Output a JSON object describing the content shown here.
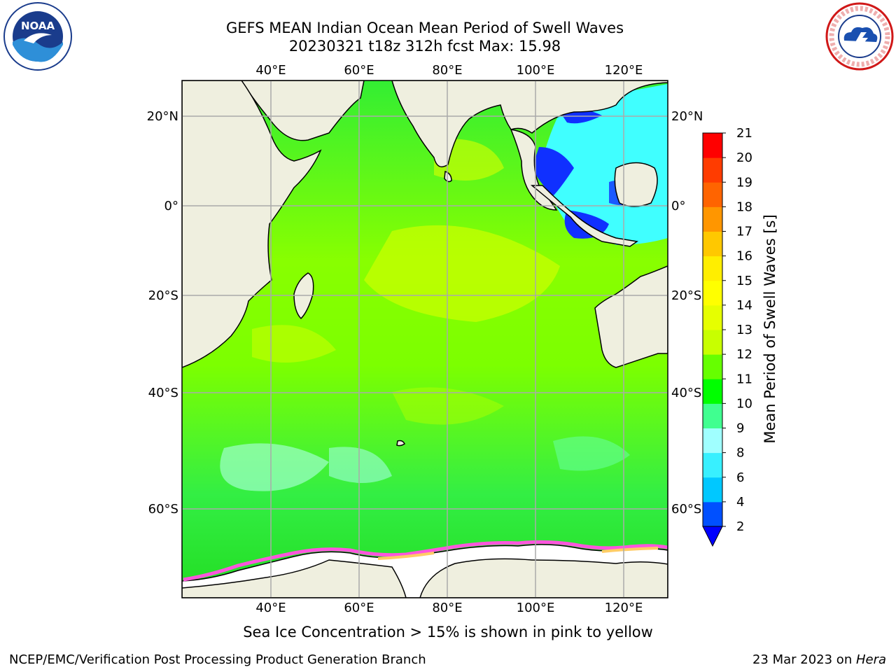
{
  "header": {
    "title_line1": "GEFS MEAN Indian Ocean Mean Period of Swell Waves",
    "title_line2": "20230321 t18z 312h fcst   Max: 15.98"
  },
  "logos": {
    "left": "noaa-logo",
    "right": "nws-logo",
    "noaa_text": "NOAA",
    "right_logo_text": "NATIONAL WEATHER SERVICE"
  },
  "map": {
    "lon_ticks": [
      "40°E",
      "60°E",
      "80°E",
      "100°E",
      "120°E"
    ],
    "lat_ticks": [
      "20°N",
      "0°",
      "20°S",
      "40°S",
      "60°S"
    ],
    "extent": {
      "lon_min": 20,
      "lon_max": 130,
      "lat_min": -74,
      "lat_max": 28
    }
  },
  "colorbar": {
    "label": "Mean Period of Swell Waves [s]",
    "tick_labels": [
      "2",
      "4",
      "6",
      "8",
      "9",
      "10",
      "11",
      "12",
      "13",
      "14",
      "15",
      "16",
      "17",
      "18",
      "19",
      "20",
      "21"
    ],
    "colors": [
      "#0050ff",
      "#00c8ff",
      "#38f0ff",
      "#a0ffff",
      "#40ff90",
      "#00ff00",
      "#66ff00",
      "#c8ff00",
      "#e6ff00",
      "#ffff00",
      "#ffee00",
      "#ffc800",
      "#ff9600",
      "#ff6400",
      "#ff3c00",
      "#ff0000"
    ],
    "under_color": "#0000ff"
  },
  "footnote": "Sea Ice Concentration > 15% is shown in pink to yellow",
  "credit_left": "NCEP/EMC/Verification Post Processing Product Generation Branch",
  "credit_right_date": "23 Mar 2023 on ",
  "credit_right_host": "Hera"
}
